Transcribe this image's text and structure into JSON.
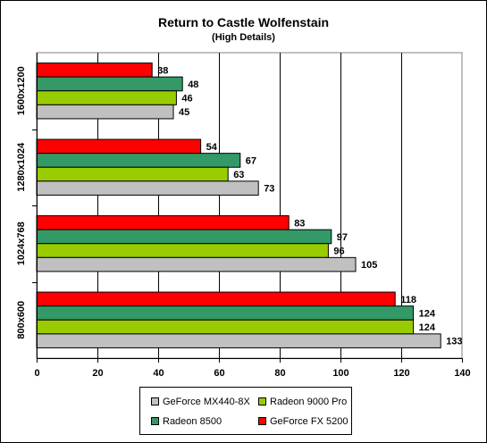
{
  "chart_data": {
    "type": "bar",
    "orientation": "horizontal",
    "title": "Return to Castle Wolfenstain",
    "subtitle": "(High Details)",
    "xlabel": "",
    "ylabel": "",
    "xlim": [
      0,
      140
    ],
    "xticks": [
      0,
      20,
      40,
      60,
      80,
      100,
      120,
      140
    ],
    "grid": true,
    "legend_position": "bottom",
    "categories": [
      "1600x1200",
      "1280x1024",
      "1024x768",
      "800x600"
    ],
    "series": [
      {
        "name": "GeForce FX 5200",
        "color": "#ff0000",
        "values": [
          38,
          54,
          83,
          118
        ]
      },
      {
        "name": "Radeon 8500",
        "color": "#339966",
        "values": [
          48,
          67,
          97,
          124
        ]
      },
      {
        "name": "Radeon 9000 Pro",
        "color": "#99cc00",
        "values": [
          46,
          63,
          96,
          124
        ]
      },
      {
        "name": "GeForce MX440-8X",
        "color": "#c0c0c0",
        "values": [
          45,
          73,
          105,
          133
        ]
      }
    ],
    "legend_order": [
      "GeForce MX440-8X",
      "Radeon 9000 Pro",
      "Radeon 8500",
      "GeForce FX 5200"
    ]
  }
}
